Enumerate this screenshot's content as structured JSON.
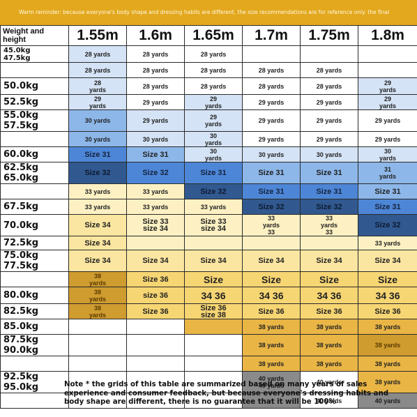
{
  "banner": "Warm reminder: because everyone's body shape and dressing habits are different, the size recommendations are for reference only. the final",
  "corner_label": "Weight and height",
  "heights": [
    "1.55m",
    "1.6m",
    "1.65m",
    "1.7m",
    "1.75m",
    "1.8m"
  ],
  "rows": [
    {
      "weight": "45.0kg\n47.5kg",
      "cells": [
        {
          "t": "28 yards",
          "c": "lightblue"
        },
        {
          "t": "28 yards",
          "c": "white"
        },
        {
          "t": "28 yards",
          "c": "white"
        },
        {
          "t": "",
          "c": "white"
        },
        {
          "t": "",
          "c": "white"
        },
        {
          "t": "",
          "c": "white"
        }
      ]
    },
    {
      "weight": "",
      "cells": [
        {
          "t": "28 yards",
          "c": "lightblue"
        },
        {
          "t": "28 yards",
          "c": "white"
        },
        {
          "t": "28 yards",
          "c": "white"
        },
        {
          "t": "28 yards",
          "c": "white"
        },
        {
          "t": "28 yards",
          "c": "white"
        },
        {
          "t": "",
          "c": "white"
        }
      ]
    },
    {
      "weight": "50.0kg",
      "cells": [
        {
          "t": "28\nyards",
          "c": "lightblue"
        },
        {
          "t": "28 yards",
          "c": "white"
        },
        {
          "t": "28 yards",
          "c": "white"
        },
        {
          "t": "28 yards",
          "c": "white"
        },
        {
          "t": "28 yards",
          "c": "white"
        },
        {
          "t": "29\nyards",
          "c": "lightblue"
        }
      ]
    },
    {
      "weight": "52.5kg",
      "cells": [
        {
          "t": "29\nyards",
          "c": "lightblue"
        },
        {
          "t": "29 yards",
          "c": "white"
        },
        {
          "t": "29\nyards",
          "c": "lightblue"
        },
        {
          "t": "29 yards",
          "c": "white"
        },
        {
          "t": "29 yards",
          "c": "white"
        },
        {
          "t": "29\nyards",
          "c": "lightblue"
        }
      ]
    },
    {
      "weight": "55.0kg\n57.5kg",
      "cells": [
        {
          "t": "30 yards",
          "c": "midblue"
        },
        {
          "t": "29 yards",
          "c": "lightblue"
        },
        {
          "t": "29\nyards",
          "c": "lightblue"
        },
        {
          "t": "29 yards",
          "c": "white"
        },
        {
          "t": "29 yards",
          "c": "white"
        },
        {
          "t": "29 yards",
          "c": "white"
        }
      ]
    },
    {
      "weight": "",
      "cells": [
        {
          "t": "30 yards",
          "c": "midblue"
        },
        {
          "t": "30 yards",
          "c": "lightblue"
        },
        {
          "t": "30\nyards",
          "c": "lightblue"
        },
        {
          "t": "29 yards",
          "c": "white"
        },
        {
          "t": "29 yards",
          "c": "white"
        },
        {
          "t": "29 yards",
          "c": "white"
        }
      ]
    },
    {
      "weight": "60.0kg",
      "cells": [
        {
          "t": "Size 31",
          "c": "blue"
        },
        {
          "t": "Size 31",
          "c": "midblue"
        },
        {
          "t": "30\nyards",
          "c": "lightblue"
        },
        {
          "t": "30 yards",
          "c": "lightblue"
        },
        {
          "t": "30 yards",
          "c": "lightblue"
        },
        {
          "t": "30\nyards",
          "c": "lightblue"
        }
      ]
    },
    {
      "weight": "62.5kg\n65.0kg",
      "cells": [
        {
          "t": "Size 32",
          "c": "navy"
        },
        {
          "t": "Size 32",
          "c": "blue"
        },
        {
          "t": "Size 31",
          "c": "blue"
        },
        {
          "t": "Size 31",
          "c": "midblue"
        },
        {
          "t": "Size 31",
          "c": "midblue"
        },
        {
          "t": "31\nyards",
          "c": "midblue"
        }
      ]
    },
    {
      "weight": "",
      "cells": [
        {
          "t": "33 yards",
          "c": "cream"
        },
        {
          "t": "33 yards",
          "c": "cream"
        },
        {
          "t": "Size 32",
          "c": "navy"
        },
        {
          "t": "Size 31",
          "c": "blue"
        },
        {
          "t": "Size 31",
          "c": "blue"
        },
        {
          "t": "Size 31",
          "c": "midblue"
        }
      ]
    },
    {
      "weight": "67.5kg",
      "cells": [
        {
          "t": "33 yards",
          "c": "cream"
        },
        {
          "t": "33 yards",
          "c": "cream"
        },
        {
          "t": "33 yards",
          "c": "cream"
        },
        {
          "t": "Size 32",
          "c": "navy"
        },
        {
          "t": "Size 32",
          "c": "navy"
        },
        {
          "t": "Size 31",
          "c": "blue"
        }
      ]
    },
    {
      "weight": "70.0kg",
      "cells": [
        {
          "t": "Size 34",
          "c": "lightyellow"
        },
        {
          "t": "Size 33\nsize 34",
          "c": "cream"
        },
        {
          "t": "Size 33\nsize 34",
          "c": "cream"
        },
        {
          "t": "33\nyards\n33",
          "c": "cream"
        },
        {
          "t": "33\nyards\n33",
          "c": "cream"
        },
        {
          "t": "Size 32",
          "c": "navy"
        }
      ]
    },
    {
      "weight": "72.5kg",
      "cells": [
        {
          "t": "Size 34",
          "c": "lightyellow"
        },
        {
          "t": "",
          "c": "cream"
        },
        {
          "t": "",
          "c": "cream"
        },
        {
          "t": "",
          "c": "cream"
        },
        {
          "t": "",
          "c": "cream"
        },
        {
          "t": "33 yards",
          "c": "cream"
        }
      ]
    },
    {
      "weight": "75.0kg\n77.5kg",
      "cells": [
        {
          "t": "Size 34",
          "c": "lightyellow"
        },
        {
          "t": "Size 34",
          "c": "lightyellow"
        },
        {
          "t": "Size 34",
          "c": "lightyellow"
        },
        {
          "t": "Size 34",
          "c": "lightyellow"
        },
        {
          "t": "Size 34",
          "c": "lightyellow"
        },
        {
          "t": "Size 34",
          "c": "lightyellow"
        }
      ]
    },
    {
      "weight": "",
      "cells": [
        {
          "t": "38\nyards",
          "c": "darkgold"
        },
        {
          "t": "Size 36",
          "c": "yellow"
        },
        {
          "t": "Size",
          "c": "yellow"
        },
        {
          "t": "Size",
          "c": "yellow"
        },
        {
          "t": "Size",
          "c": "yellow"
        },
        {
          "t": "Size",
          "c": "yellow"
        }
      ]
    },
    {
      "weight": "80.0kg",
      "cells": [
        {
          "t": "38\nyards",
          "c": "darkgold"
        },
        {
          "t": "size 36",
          "c": "yellow"
        },
        {
          "t": "34 36",
          "c": "yellow"
        },
        {
          "t": "34 36",
          "c": "yellow"
        },
        {
          "t": "34 36",
          "c": "yellow"
        },
        {
          "t": "34 36",
          "c": "yellow"
        }
      ]
    },
    {
      "weight": "82.5kg",
      "cells": [
        {
          "t": "38\nyards",
          "c": "darkgold"
        },
        {
          "t": "Size 36",
          "c": "yellow"
        },
        {
          "t": "Size 36\nsize 38",
          "c": "yellow"
        },
        {
          "t": "Size 36",
          "c": "yellow"
        },
        {
          "t": "Size 36",
          "c": "yellow"
        },
        {
          "t": "Size 36",
          "c": "yellow"
        }
      ]
    },
    {
      "weight": "85.0kg",
      "cells": [
        {
          "t": "",
          "c": "white"
        },
        {
          "t": "",
          "c": "white"
        },
        {
          "t": "",
          "c": "gold"
        },
        {
          "t": "38 yards",
          "c": "gold"
        },
        {
          "t": "38 yards",
          "c": "gold"
        },
        {
          "t": "38 yards",
          "c": "gold"
        }
      ]
    },
    {
      "weight": "87.5kg\n90.0kg",
      "cells": [
        {
          "t": "",
          "c": "white"
        },
        {
          "t": "",
          "c": "white"
        },
        {
          "t": "",
          "c": "white"
        },
        {
          "t": "38 yards",
          "c": "gold"
        },
        {
          "t": "38 yards",
          "c": "gold"
        },
        {
          "t": "38 yards",
          "c": "darkgold"
        }
      ]
    },
    {
      "weight": "",
      "cells": [
        {
          "t": "",
          "c": "white"
        },
        {
          "t": "",
          "c": "white"
        },
        {
          "t": "",
          "c": "white"
        },
        {
          "t": "38 yards",
          "c": "gold"
        },
        {
          "t": "38 yards",
          "c": "gold"
        },
        {
          "t": "38 yards",
          "c": "gold"
        }
      ]
    },
    {
      "weight": "92.5kg\n95.0kg",
      "cells": [
        {
          "t": "",
          "c": "white"
        },
        {
          "t": "",
          "c": "white"
        },
        {
          "t": "",
          "c": "white"
        },
        {
          "t": "40 yards\n40 yards",
          "c": "gray"
        },
        {
          "t": "40 yards",
          "c": "white"
        },
        {
          "t": "38 yards",
          "c": "gold"
        }
      ]
    },
    {
      "weight": "",
      "cells": [
        {
          "t": "",
          "c": "white"
        },
        {
          "t": "",
          "c": "white"
        },
        {
          "t": "",
          "c": "white"
        },
        {
          "t": "",
          "c": "gray"
        },
        {
          "t": "40 yards",
          "c": "white"
        },
        {
          "t": "40 yards",
          "c": "gray"
        }
      ]
    }
  ],
  "note": "Note * the grids of this table are summarized based on many years of sales experience and consumer feedback, but because everyone's dressing habits and body shape are different, there is no guarantee that it will be 100%"
}
